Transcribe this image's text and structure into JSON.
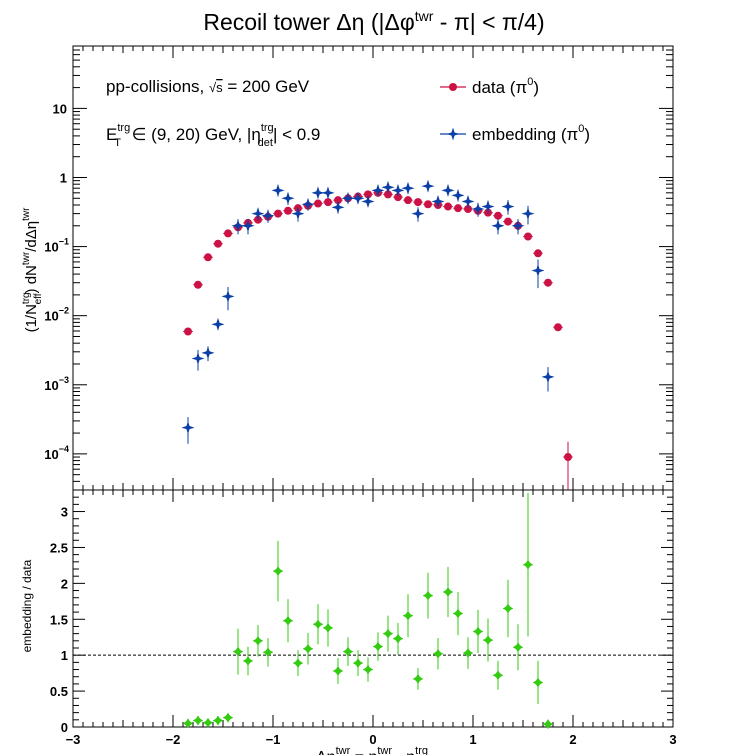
{
  "chart_data": [
    {
      "type": "scatter",
      "title": "Recoil tower Δη (|Δφ^twr - π| < π/4)",
      "title_parts": {
        "base": "Recoil tower Δη (|Δφ",
        "sup": "twr",
        "rest": " - π| < π/4)"
      },
      "ylabel_parts": {
        "a": "(1/N",
        "a_sup": "trg",
        "a_sub": "eff",
        "b": ") dN",
        "b_sup": "twr",
        "c": "/dΔη",
        "c_sup": "twr"
      },
      "annotations": {
        "line1": {
          "pre": "pp-collisions, ",
          "sqrt": "√",
          "s": "s",
          "post": " = 200 GeV"
        },
        "line2": {
          "e": "E",
          "e_sup": "trg",
          "e_sub": "T",
          "mid": " ∈ (9, 20) GeV, |η",
          "eta_sup": "trg",
          "eta_sub": "det",
          "post": "| < 0.9"
        }
      },
      "legend_placement": "top-right",
      "legend": [
        {
          "series": "data",
          "label": "data (π",
          "sup": "0",
          "close": ")",
          "color": "#cc1144",
          "marker": "circle"
        },
        {
          "series": "embedding",
          "label": "embedding (π",
          "sup": "0",
          "close": ")",
          "color": "#0b3fa8",
          "marker": "star"
        }
      ],
      "xlim": [
        -3,
        3
      ],
      "ylim": [
        3e-05,
        80
      ],
      "yscale": "log",
      "ytick_labels": [
        {
          "value": 0.0001,
          "base": "10",
          "exp": "−4"
        },
        {
          "value": 0.001,
          "base": "10",
          "exp": "−3"
        },
        {
          "value": 0.01,
          "base": "10",
          "exp": "−2"
        },
        {
          "value": 0.1,
          "base": "10",
          "exp": "−1"
        },
        {
          "value": 1,
          "base": "1",
          "exp": ""
        },
        {
          "value": 10,
          "base": "10",
          "exp": ""
        }
      ],
      "series": [
        {
          "name": "data (π0)",
          "x": [
            -1.85,
            -1.75,
            -1.65,
            -1.55,
            -1.45,
            -1.35,
            -1.25,
            -1.15,
            -1.05,
            -0.95,
            -0.85,
            -0.75,
            -0.65,
            -0.55,
            -0.45,
            -0.35,
            -0.25,
            -0.15,
            -0.05,
            0.05,
            0.15,
            0.25,
            0.35,
            0.45,
            0.55,
            0.65,
            0.75,
            0.85,
            0.95,
            1.05,
            1.15,
            1.25,
            1.35,
            1.45,
            1.55,
            1.65,
            1.75,
            1.85,
            1.95
          ],
          "y": [
            0.0059,
            0.028,
            0.07,
            0.11,
            0.155,
            0.19,
            0.22,
            0.245,
            0.27,
            0.3,
            0.33,
            0.36,
            0.39,
            0.42,
            0.44,
            0.47,
            0.5,
            0.53,
            0.57,
            0.6,
            0.57,
            0.52,
            0.47,
            0.44,
            0.41,
            0.4,
            0.38,
            0.36,
            0.35,
            0.33,
            0.31,
            0.28,
            0.23,
            0.2,
            0.14,
            0.08,
            0.03,
            0.0068,
            9e-05
          ],
          "yerr": [
            0,
            0,
            0,
            0,
            0,
            0,
            0,
            0,
            0,
            0,
            0,
            0,
            0,
            0,
            0,
            0,
            0,
            0,
            0,
            0,
            0,
            0,
            0,
            0,
            0,
            0,
            0,
            0,
            0,
            0,
            0,
            0,
            0,
            0,
            0,
            0,
            0,
            0,
            6e-05
          ]
        },
        {
          "name": "embedding (π0)",
          "x": [
            -1.85,
            -1.75,
            -1.65,
            -1.55,
            -1.45,
            -1.35,
            -1.25,
            -1.15,
            -1.05,
            -0.95,
            -0.85,
            -0.75,
            -0.65,
            -0.55,
            -0.45,
            -0.35,
            -0.25,
            -0.15,
            -0.05,
            0.05,
            0.15,
            0.25,
            0.35,
            0.45,
            0.55,
            0.65,
            0.75,
            0.85,
            0.95,
            1.05,
            1.15,
            1.25,
            1.35,
            1.45,
            1.55,
            1.65,
            1.75
          ],
          "y": [
            0.00024,
            0.0024,
            0.0029,
            0.0075,
            0.019,
            0.2,
            0.2,
            0.3,
            0.28,
            0.65,
            0.5,
            0.3,
            0.41,
            0.6,
            0.6,
            0.37,
            0.5,
            0.5,
            0.45,
            0.65,
            0.72,
            0.65,
            0.7,
            0.3,
            0.75,
            0.45,
            0.65,
            0.55,
            0.45,
            0.35,
            0.38,
            0.2,
            0.38,
            0.2,
            0.3,
            0.045,
            0.0013
          ],
          "yerr": [
            0.0001,
            0.0008,
            0.0007,
            0.001,
            0.007,
            0.05,
            0.05,
            0.06,
            0.06,
            0.12,
            0.1,
            0.07,
            0.08,
            0.1,
            0.1,
            0.07,
            0.08,
            0.08,
            0.07,
            0.1,
            0.12,
            0.1,
            0.12,
            0.07,
            0.12,
            0.08,
            0.1,
            0.1,
            0.09,
            0.08,
            0.08,
            0.05,
            0.09,
            0.05,
            0.09,
            0.02,
            0.0005
          ]
        }
      ]
    },
    {
      "type": "scatter",
      "ylabel": "embedding / data",
      "xlabel_parts": {
        "a": "Δη",
        "a_sup": "twr",
        "b": " = η",
        "b_sup": "twr",
        "c": " - η",
        "c_sup": "trg"
      },
      "xlim": [
        -3,
        3
      ],
      "ylim": [
        0,
        3.3
      ],
      "xticks": [
        -3,
        -2,
        -1,
        0,
        1,
        2,
        3
      ],
      "xtick_labels": [
        "−3",
        "−2",
        "−1",
        "0",
        "1",
        "2",
        "3"
      ],
      "yticks": [
        0,
        0.5,
        1,
        1.5,
        2,
        2.5,
        3
      ],
      "ytick_labels": [
        "0",
        "0.5",
        "1",
        "1.5",
        "2",
        "2.5",
        "3"
      ],
      "reference_line": 1,
      "series": [
        {
          "name": "embedding / data",
          "color": "#33cc11",
          "x": [
            -1.85,
            -1.75,
            -1.65,
            -1.55,
            -1.45,
            -1.35,
            -1.25,
            -1.15,
            -1.05,
            -0.95,
            -0.85,
            -0.75,
            -0.65,
            -0.55,
            -0.45,
            -0.35,
            -0.25,
            -0.15,
            -0.05,
            0.05,
            0.15,
            0.25,
            0.35,
            0.45,
            0.55,
            0.65,
            0.75,
            0.85,
            0.95,
            1.05,
            1.15,
            1.25,
            1.35,
            1.45,
            1.55,
            1.65,
            1.75
          ],
          "y": [
            0.05,
            0.09,
            0.06,
            0.09,
            0.13,
            1.05,
            0.92,
            1.2,
            1.04,
            2.17,
            1.48,
            0.89,
            1.09,
            1.43,
            1.38,
            0.78,
            1.05,
            0.89,
            0.8,
            1.12,
            1.3,
            1.23,
            1.55,
            0.67,
            1.83,
            1.02,
            1.88,
            1.58,
            1.03,
            1.33,
            1.21,
            0.72,
            1.65,
            1.11,
            2.26,
            0.62,
            0.04
          ],
          "yerr": [
            0.02,
            0.03,
            0.02,
            0.03,
            0.04,
            0.32,
            0.2,
            0.22,
            0.2,
            0.42,
            0.3,
            0.18,
            0.22,
            0.28,
            0.26,
            0.18,
            0.2,
            0.18,
            0.17,
            0.2,
            0.25,
            0.22,
            0.3,
            0.15,
            0.32,
            0.22,
            0.35,
            0.3,
            0.22,
            0.3,
            0.3,
            0.2,
            0.4,
            0.32,
            1.0,
            0.3,
            0.02
          ]
        }
      ]
    }
  ]
}
